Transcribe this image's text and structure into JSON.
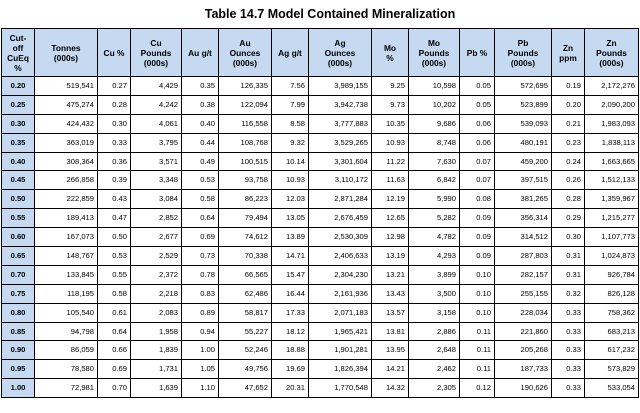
{
  "title": "Table 14.7 Model Contained Mineralization",
  "headers": [
    "Cut-\noff\nCuEq\n%",
    "Tonnes\n(000s)",
    "Cu %",
    "Cu\nPounds\n(000s)",
    "Au g/t",
    "Au\nOunces\n(000s)",
    "Ag g/t",
    "Ag\nOunces\n(000s)",
    "Mo\n%",
    "Mo\nPounds\n(000s)",
    "Pb %",
    "Pb\nPounds\n(000s)",
    "Zn\nppm",
    "Zn\nPounds\n(000s)"
  ],
  "rows": [
    [
      "0.20",
      "519,541",
      "0.27",
      "4,429",
      "0.35",
      "126,335",
      "7.56",
      "3,989,155",
      "9.25",
      "10,598",
      "0.05",
      "572,695",
      "0.19",
      "2,172,276"
    ],
    [
      "0.25",
      "475,274",
      "0.28",
      "4,242",
      "0.38",
      "122,094",
      "7.99",
      "3,942,738",
      "9.73",
      "10,202",
      "0.05",
      "523,899",
      "0.20",
      "2,090,200"
    ],
    [
      "0.30",
      "424,432",
      "0.30",
      "4,061",
      "0.40",
      "116,558",
      "8.58",
      "3,777,883",
      "10.35",
      "9,686",
      "0.06",
      "539,093",
      "0.21",
      "1,983,093"
    ],
    [
      "0.35",
      "363,019",
      "0.33",
      "3,795",
      "0.44",
      "108,768",
      "9.32",
      "3,529,265",
      "10.93",
      "8,748",
      "0.06",
      "480,191",
      "0.23",
      "1,838,113"
    ],
    [
      "0.40",
      "308,364",
      "0.36",
      "3,571",
      "0.49",
      "100,515",
      "10.14",
      "3,301,604",
      "11.22",
      "7,630",
      "0.07",
      "459,200",
      "0.24",
      "1,663,665"
    ],
    [
      "0.45",
      "266,858",
      "0.39",
      "3,348",
      "0.53",
      "93,758",
      "10.93",
      "3,110,172",
      "11.63",
      "6,842",
      "0.07",
      "397,515",
      "0.26",
      "1,512,133"
    ],
    [
      "0.50",
      "222,859",
      "0.43",
      "3,084",
      "0.58",
      "86,223",
      "12.03",
      "2,871,284",
      "12.19",
      "5,990",
      "0.08",
      "381,265",
      "0.28",
      "1,359,967"
    ],
    [
      "0.55",
      "189,413",
      "0.47",
      "2,852",
      "0.64",
      "79,494",
      "13.05",
      "2,676,459",
      "12.65",
      "5,282",
      "0.09",
      "356,314",
      "0.29",
      "1,215,277"
    ],
    [
      "0.60",
      "167,073",
      "0.50",
      "2,677",
      "0.69",
      "74,612",
      "13.89",
      "2,530,309",
      "12.98",
      "4,782",
      "0.09",
      "314,512",
      "0.30",
      "1,107,773"
    ],
    [
      "0.65",
      "148,767",
      "0.53",
      "2,529",
      "0.73",
      "70,338",
      "14.71",
      "2,406,633",
      "13.19",
      "4,293",
      "0.09",
      "287,803",
      "0.31",
      "1,024,873"
    ],
    [
      "0.70",
      "133,845",
      "0.55",
      "2,372",
      "0.78",
      "66,565",
      "15.47",
      "2,304,230",
      "13.21",
      "3,899",
      "0.10",
      "282,157",
      "0.31",
      "926,784"
    ],
    [
      "0.75",
      "118,195",
      "0.58",
      "2,218",
      "0.83",
      "62,486",
      "16.44",
      "2,161,936",
      "13.43",
      "3,500",
      "0.10",
      "255,155",
      "0.32",
      "826,128"
    ],
    [
      "0.80",
      "105,540",
      "0.61",
      "2,083",
      "0.89",
      "58,817",
      "17.33",
      "2,071,183",
      "13.57",
      "3,158",
      "0.10",
      "228,034",
      "0.33",
      "758,362"
    ],
    [
      "0.85",
      "94,798",
      "0.64",
      "1,958",
      "0.94",
      "55,227",
      "18.12",
      "1,965,421",
      "13.81",
      "2,886",
      "0.11",
      "221,860",
      "0.33",
      "683,213"
    ],
    [
      "0.90",
      "86,059",
      "0.66",
      "1,839",
      "1.00",
      "52,246",
      "18.88",
      "1,901,281",
      "13.95",
      "2,648",
      "0.11",
      "205,268",
      "0.33",
      "617,232"
    ],
    [
      "0.95",
      "78,580",
      "0.69",
      "1,731",
      "1.05",
      "49,756",
      "19.69",
      "1,826,394",
      "14.21",
      "2,462",
      "0.11",
      "187,733",
      "0.33",
      "573,829"
    ],
    [
      "1.00",
      "72,981",
      "0.70",
      "1,639",
      "1.10",
      "47,652",
      "20.31",
      "1,770,548",
      "14.32",
      "2,305",
      "0.12",
      "190,626",
      "0.33",
      "533,054"
    ]
  ]
}
